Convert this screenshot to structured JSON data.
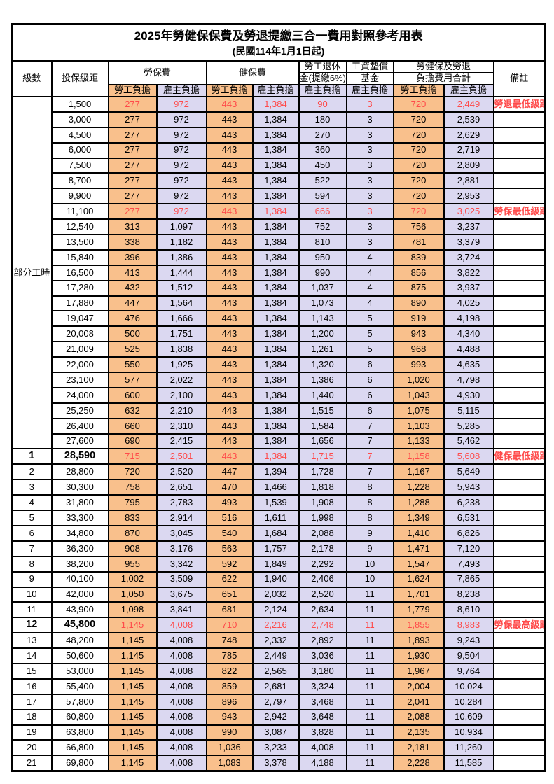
{
  "title": "2025年勞健保保費及勞退提繳三合一費用對照參考用表",
  "subtitle": "(民國114年1月1日起)",
  "header": {
    "level": "級數",
    "bracket": "投保級距",
    "labor_insurance": "勞保費",
    "health_insurance": "健保費",
    "pension_line1": "勞工退休",
    "pension_line2": "金(提繳6%)",
    "wage_fund_line1": "工資墊償",
    "wage_fund_line2": "基金",
    "total_line1": "勞健保及勞退",
    "total_line2": "負擔費用合計",
    "remark": "備註",
    "employee_burden": "勞工負擔",
    "employer_burden": "雇主負擔"
  },
  "part_time_label": "部分工時",
  "colors": {
    "employee_bg": "#F9C08C",
    "employer_bg": "#DBD8F1",
    "highlight_text": "#FF4A4A",
    "border": "#000000"
  },
  "rows": [
    {
      "level": "",
      "bracket": "1,500",
      "values": [
        "277",
        "972",
        "443",
        "1,384",
        "90",
        "3",
        "720",
        "2,449"
      ],
      "remark": "勞退最低級距",
      "highlight": true
    },
    {
      "level": "",
      "bracket": "3,000",
      "values": [
        "277",
        "972",
        "443",
        "1,384",
        "180",
        "3",
        "720",
        "2,539"
      ],
      "remark": ""
    },
    {
      "level": "",
      "bracket": "4,500",
      "values": [
        "277",
        "972",
        "443",
        "1,384",
        "270",
        "3",
        "720",
        "2,629"
      ],
      "remark": ""
    },
    {
      "level": "",
      "bracket": "6,000",
      "values": [
        "277",
        "972",
        "443",
        "1,384",
        "360",
        "3",
        "720",
        "2,719"
      ],
      "remark": ""
    },
    {
      "level": "",
      "bracket": "7,500",
      "values": [
        "277",
        "972",
        "443",
        "1,384",
        "450",
        "3",
        "720",
        "2,809"
      ],
      "remark": ""
    },
    {
      "level": "",
      "bracket": "8,700",
      "values": [
        "277",
        "972",
        "443",
        "1,384",
        "522",
        "3",
        "720",
        "2,881"
      ],
      "remark": ""
    },
    {
      "level": "",
      "bracket": "9,900",
      "values": [
        "277",
        "972",
        "443",
        "1,384",
        "594",
        "3",
        "720",
        "2,953"
      ],
      "remark": ""
    },
    {
      "level": "",
      "bracket": "11,100",
      "values": [
        "277",
        "972",
        "443",
        "1,384",
        "666",
        "3",
        "720",
        "3,025"
      ],
      "remark": "勞保最低級距",
      "highlight": true
    },
    {
      "level": "",
      "bracket": "12,540",
      "values": [
        "313",
        "1,097",
        "443",
        "1,384",
        "752",
        "3",
        "756",
        "3,237"
      ],
      "remark": ""
    },
    {
      "level": "",
      "bracket": "13,500",
      "values": [
        "338",
        "1,182",
        "443",
        "1,384",
        "810",
        "3",
        "781",
        "3,379"
      ],
      "remark": ""
    },
    {
      "level": "",
      "bracket": "15,840",
      "values": [
        "396",
        "1,386",
        "443",
        "1,384",
        "950",
        "4",
        "839",
        "3,724"
      ],
      "remark": ""
    },
    {
      "level": "",
      "bracket": "16,500",
      "values": [
        "413",
        "1,444",
        "443",
        "1,384",
        "990",
        "4",
        "856",
        "3,822"
      ],
      "remark": ""
    },
    {
      "level": "",
      "bracket": "17,280",
      "values": [
        "432",
        "1,512",
        "443",
        "1,384",
        "1,037",
        "4",
        "875",
        "3,937"
      ],
      "remark": ""
    },
    {
      "level": "",
      "bracket": "17,880",
      "values": [
        "447",
        "1,564",
        "443",
        "1,384",
        "1,073",
        "4",
        "890",
        "4,025"
      ],
      "remark": ""
    },
    {
      "level": "",
      "bracket": "19,047",
      "values": [
        "476",
        "1,666",
        "443",
        "1,384",
        "1,143",
        "5",
        "919",
        "4,198"
      ],
      "remark": ""
    },
    {
      "level": "",
      "bracket": "20,008",
      "values": [
        "500",
        "1,751",
        "443",
        "1,384",
        "1,200",
        "5",
        "943",
        "4,340"
      ],
      "remark": ""
    },
    {
      "level": "",
      "bracket": "21,009",
      "values": [
        "525",
        "1,838",
        "443",
        "1,384",
        "1,261",
        "5",
        "968",
        "4,488"
      ],
      "remark": ""
    },
    {
      "level": "",
      "bracket": "22,000",
      "values": [
        "550",
        "1,925",
        "443",
        "1,384",
        "1,320",
        "6",
        "993",
        "4,635"
      ],
      "remark": ""
    },
    {
      "level": "",
      "bracket": "23,100",
      "values": [
        "577",
        "2,022",
        "443",
        "1,384",
        "1,386",
        "6",
        "1,020",
        "4,798"
      ],
      "remark": ""
    },
    {
      "level": "",
      "bracket": "24,000",
      "values": [
        "600",
        "2,100",
        "443",
        "1,384",
        "1,440",
        "6",
        "1,043",
        "4,930"
      ],
      "remark": ""
    },
    {
      "level": "",
      "bracket": "25,250",
      "values": [
        "632",
        "2,210",
        "443",
        "1,384",
        "1,515",
        "6",
        "1,075",
        "5,115"
      ],
      "remark": ""
    },
    {
      "level": "",
      "bracket": "26,400",
      "values": [
        "660",
        "2,310",
        "443",
        "1,384",
        "1,584",
        "7",
        "1,103",
        "5,285"
      ],
      "remark": ""
    },
    {
      "level": "",
      "bracket": "27,600",
      "values": [
        "690",
        "2,415",
        "443",
        "1,384",
        "1,656",
        "7",
        "1,133",
        "5,462"
      ],
      "remark": ""
    },
    {
      "level": "1",
      "bracket": "28,590",
      "values": [
        "715",
        "2,501",
        "443",
        "1,384",
        "1,715",
        "7",
        "1,158",
        "5,608"
      ],
      "remark": "健保最低級距",
      "highlight": true,
      "emphasis": true
    },
    {
      "level": "2",
      "bracket": "28,800",
      "values": [
        "720",
        "2,520",
        "447",
        "1,394",
        "1,728",
        "7",
        "1,167",
        "5,649"
      ],
      "remark": ""
    },
    {
      "level": "3",
      "bracket": "30,300",
      "values": [
        "758",
        "2,651",
        "470",
        "1,466",
        "1,818",
        "8",
        "1,228",
        "5,943"
      ],
      "remark": ""
    },
    {
      "level": "4",
      "bracket": "31,800",
      "values": [
        "795",
        "2,783",
        "493",
        "1,539",
        "1,908",
        "8",
        "1,288",
        "6,238"
      ],
      "remark": ""
    },
    {
      "level": "5",
      "bracket": "33,300",
      "values": [
        "833",
        "2,914",
        "516",
        "1,611",
        "1,998",
        "8",
        "1,349",
        "6,531"
      ],
      "remark": ""
    },
    {
      "level": "6",
      "bracket": "34,800",
      "values": [
        "870",
        "3,045",
        "540",
        "1,684",
        "2,088",
        "9",
        "1,410",
        "6,826"
      ],
      "remark": ""
    },
    {
      "level": "7",
      "bracket": "36,300",
      "values": [
        "908",
        "3,176",
        "563",
        "1,757",
        "2,178",
        "9",
        "1,471",
        "7,120"
      ],
      "remark": ""
    },
    {
      "level": "8",
      "bracket": "38,200",
      "values": [
        "955",
        "3,342",
        "592",
        "1,849",
        "2,292",
        "10",
        "1,547",
        "7,493"
      ],
      "remark": ""
    },
    {
      "level": "9",
      "bracket": "40,100",
      "values": [
        "1,002",
        "3,509",
        "622",
        "1,940",
        "2,406",
        "10",
        "1,624",
        "7,865"
      ],
      "remark": ""
    },
    {
      "level": "10",
      "bracket": "42,000",
      "values": [
        "1,050",
        "3,675",
        "651",
        "2,032",
        "2,520",
        "11",
        "1,701",
        "8,238"
      ],
      "remark": ""
    },
    {
      "level": "11",
      "bracket": "43,900",
      "values": [
        "1,098",
        "3,841",
        "681",
        "2,124",
        "2,634",
        "11",
        "1,779",
        "8,610"
      ],
      "remark": ""
    },
    {
      "level": "12",
      "bracket": "45,800",
      "values": [
        "1,145",
        "4,008",
        "710",
        "2,216",
        "2,748",
        "11",
        "1,855",
        "8,983"
      ],
      "remark": "勞保最高級距",
      "highlight": true,
      "emphasis": true
    },
    {
      "level": "13",
      "bracket": "48,200",
      "values": [
        "1,145",
        "4,008",
        "748",
        "2,332",
        "2,892",
        "11",
        "1,893",
        "9,243"
      ],
      "remark": ""
    },
    {
      "level": "14",
      "bracket": "50,600",
      "values": [
        "1,145",
        "4,008",
        "785",
        "2,449",
        "3,036",
        "11",
        "1,930",
        "9,504"
      ],
      "remark": ""
    },
    {
      "level": "15",
      "bracket": "53,000",
      "values": [
        "1,145",
        "4,008",
        "822",
        "2,565",
        "3,180",
        "11",
        "1,967",
        "9,764"
      ],
      "remark": ""
    },
    {
      "level": "16",
      "bracket": "55,400",
      "values": [
        "1,145",
        "4,008",
        "859",
        "2,681",
        "3,324",
        "11",
        "2,004",
        "10,024"
      ],
      "remark": ""
    },
    {
      "level": "17",
      "bracket": "57,800",
      "values": [
        "1,145",
        "4,008",
        "896",
        "2,797",
        "3,468",
        "11",
        "2,041",
        "10,284"
      ],
      "remark": ""
    },
    {
      "level": "18",
      "bracket": "60,800",
      "values": [
        "1,145",
        "4,008",
        "943",
        "2,942",
        "3,648",
        "11",
        "2,088",
        "10,609"
      ],
      "remark": ""
    },
    {
      "level": "19",
      "bracket": "63,800",
      "values": [
        "1,145",
        "4,008",
        "990",
        "3,087",
        "3,828",
        "11",
        "2,135",
        "10,934"
      ],
      "remark": ""
    },
    {
      "level": "20",
      "bracket": "66,800",
      "values": [
        "1,145",
        "4,008",
        "1,036",
        "3,233",
        "4,008",
        "11",
        "2,181",
        "11,260"
      ],
      "remark": ""
    },
    {
      "level": "21",
      "bracket": "69,800",
      "values": [
        "1,145",
        "4,008",
        "1,083",
        "3,378",
        "4,188",
        "11",
        "2,228",
        "11,585"
      ],
      "remark": ""
    }
  ]
}
